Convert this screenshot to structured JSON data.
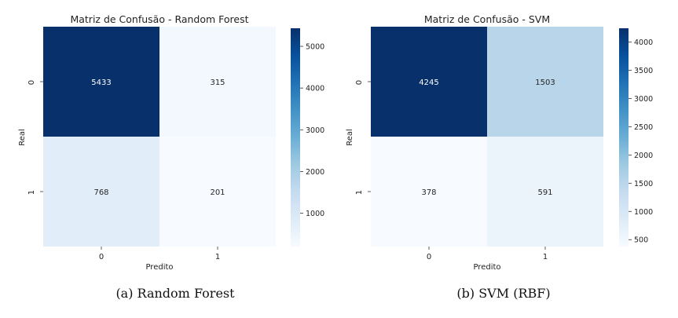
{
  "chart_data": [
    {
      "type": "heatmap",
      "title": "Matriz de Confusão - Random Forest",
      "xlabel": "Predito",
      "ylabel": "Real",
      "x_categories": [
        "0",
        "1"
      ],
      "y_categories": [
        "0",
        "1"
      ],
      "values": [
        [
          5433,
          315
        ],
        [
          768,
          201
        ]
      ],
      "colormap": "Blues",
      "colorbar_ticks": [
        "1000",
        "2000",
        "3000",
        "4000",
        "5000"
      ],
      "caption": "(a) Random Forest"
    },
    {
      "type": "heatmap",
      "title": "Matriz de Confusão - SVM",
      "xlabel": "Predito",
      "ylabel": "Real",
      "x_categories": [
        "0",
        "1"
      ],
      "y_categories": [
        "0",
        "1"
      ],
      "values": [
        [
          4245,
          1503
        ],
        [
          378,
          591
        ]
      ],
      "colormap": "Blues",
      "colorbar_ticks": [
        "500",
        "1000",
        "1500",
        "2000",
        "2500",
        "3000",
        "3500",
        "4000"
      ],
      "caption": "(b) SVM (RBF)"
    }
  ]
}
